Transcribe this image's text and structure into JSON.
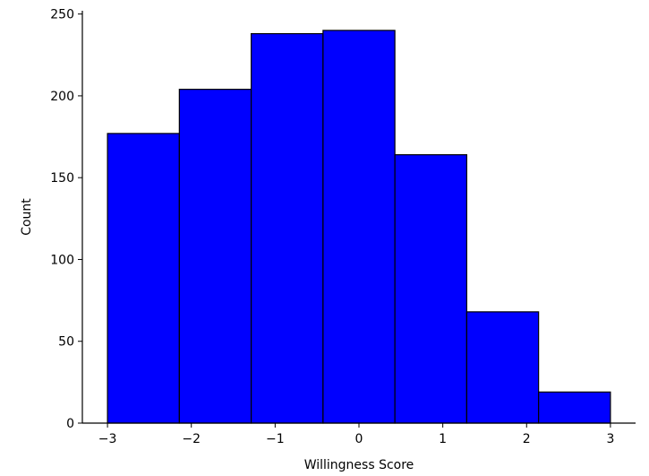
{
  "chart_data": {
    "type": "bar",
    "subtype": "histogram",
    "title": "",
    "xlabel": "Willingness Score",
    "ylabel": "Count",
    "bins": [
      {
        "start": -3.0,
        "end": -2.142857,
        "count": 177
      },
      {
        "start": -2.142857,
        "end": -1.285714,
        "count": 204
      },
      {
        "start": -1.285714,
        "end": -0.428571,
        "count": 238
      },
      {
        "start": -0.428571,
        "end": 0.428571,
        "count": 240
      },
      {
        "start": 0.428571,
        "end": 1.285714,
        "count": 164
      },
      {
        "start": 1.285714,
        "end": 2.142857,
        "count": 68
      },
      {
        "start": 2.142857,
        "end": 3.0,
        "count": 19
      }
    ],
    "xlim": [
      -3.3,
      3.3
    ],
    "ylim": [
      0,
      252
    ],
    "xticks": [
      -3,
      -2,
      -1,
      0,
      1,
      2,
      3
    ],
    "xtick_labels": [
      "−3",
      "−2",
      "−1",
      "0",
      "1",
      "2",
      "3"
    ],
    "yticks": [
      0,
      50,
      100,
      150,
      200,
      250
    ],
    "ytick_labels": [
      "0",
      "50",
      "100",
      "150",
      "200",
      "250"
    ],
    "bar_color": "#0000ff",
    "edge_color": "#000000",
    "grid": false,
    "legend": "none",
    "spines": [
      "left",
      "bottom"
    ]
  }
}
